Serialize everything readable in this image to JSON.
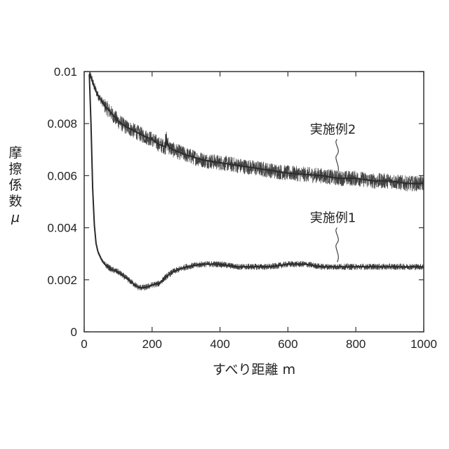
{
  "chart_data": {
    "type": "line",
    "xlabel": "すべり距離 m",
    "ylabel": [
      "摩",
      "擦",
      "係",
      "数",
      "μ"
    ],
    "xlim": [
      0,
      1000
    ],
    "ylim": [
      0,
      0.01
    ],
    "x_ticks": [
      0,
      200,
      400,
      600,
      800,
      1000
    ],
    "x_tick_labels": [
      "0",
      "200",
      "400",
      "600",
      "800",
      "1000"
    ],
    "y_ticks": [
      0,
      0.002,
      0.004,
      0.006,
      0.008,
      0.01
    ],
    "y_tick_labels": [
      "0",
      "0.002",
      "0.004",
      "0.006",
      "0.008",
      "0.01"
    ],
    "grid": false,
    "series": [
      {
        "name": "実施例2",
        "color": "#2b2b2b",
        "x": [
          15,
          20,
          30,
          40,
          50,
          60,
          80,
          100,
          120,
          150,
          180,
          200,
          220,
          240,
          241,
          243,
          246,
          250,
          260,
          280,
          300,
          350,
          400,
          450,
          500,
          550,
          600,
          650,
          700,
          750,
          800,
          850,
          900,
          950,
          1000
        ],
        "y": [
          0.0099,
          0.0098,
          0.0094,
          0.0091,
          0.0089,
          0.0087,
          0.0084,
          0.0081,
          0.0079,
          0.0077,
          0.0075,
          0.0074,
          0.0072,
          0.0071,
          0.0076,
          0.0072,
          0.00725,
          0.0071,
          0.007,
          0.0069,
          0.0068,
          0.0066,
          0.0065,
          0.0064,
          0.0063,
          0.0062,
          0.0061,
          0.00605,
          0.006,
          0.0059,
          0.0059,
          0.0058,
          0.0058,
          0.0057,
          0.0057
        ],
        "noise": 0.0003
      },
      {
        "name": "実施例1",
        "color": "#2b2b2b",
        "x": [
          15,
          20,
          25,
          30,
          35,
          40,
          50,
          60,
          70,
          80,
          100,
          120,
          140,
          160,
          180,
          200,
          220,
          240,
          260,
          280,
          300,
          350,
          400,
          450,
          500,
          550,
          600,
          650,
          700,
          750,
          800,
          850,
          900,
          950,
          1000
        ],
        "y": [
          0.0099,
          0.008,
          0.0055,
          0.0041,
          0.0034,
          0.0031,
          0.0028,
          0.0026,
          0.0025,
          0.0024,
          0.0023,
          0.0021,
          0.0019,
          0.0017,
          0.0017,
          0.0018,
          0.00185,
          0.0021,
          0.0023,
          0.0024,
          0.0025,
          0.0026,
          0.0026,
          0.0025,
          0.0025,
          0.0025,
          0.0026,
          0.0026,
          0.0025,
          0.0025,
          0.0025,
          0.0025,
          0.0025,
          0.0025,
          0.0025
        ],
        "noise": 0.00012
      }
    ],
    "annotations": [
      {
        "series": "実施例2",
        "text": "実施例2",
        "anchor_x": 745,
        "anchor_y": 0.006
      },
      {
        "series": "実施例1",
        "text": "実施例1",
        "anchor_x": 745,
        "anchor_y": 0.0026
      }
    ]
  }
}
